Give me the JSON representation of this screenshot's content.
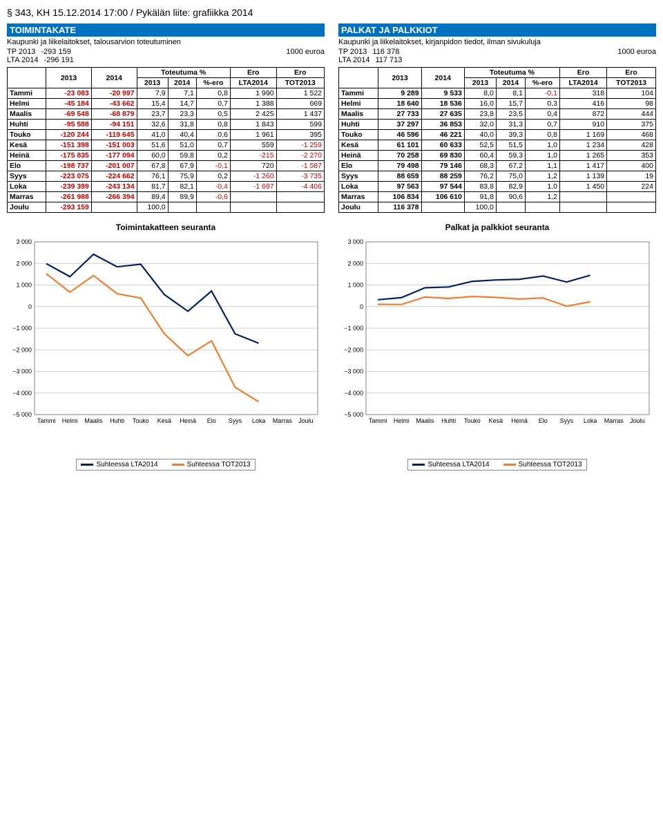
{
  "page_header": "§ 343, KH 15.12.2014 17:00 / Pykälän liite: grafiikka 2014",
  "months": [
    "Tammi",
    "Helmi",
    "Maalis",
    "Huhti",
    "Touko",
    "Kesä",
    "Heinä",
    "Elo",
    "Syys",
    "Loka",
    "Marras",
    "Joulu"
  ],
  "left": {
    "title": "TOIMINTAKATE",
    "subtitle": "Kaupunki ja liikelaitokset, talousarvion toteutuminen",
    "unit": "1000 euroa",
    "tp_label": "TP 2013",
    "tp_value": "-293 159",
    "lta_label": "LTA 2014",
    "lta_value": "-296 191",
    "headers": {
      "c2013": "2013",
      "c2014": "2014",
      "tot": "Toteutuma %",
      "t2013": "2013",
      "t2014": "2014",
      "pero": "%-ero",
      "ero": "Ero",
      "lta": "LTA2014",
      "tot2013": "TOT2013"
    },
    "rows": [
      {
        "m": "Tammi",
        "c13": "-23 083",
        "c14": "-20 997",
        "t13": "7,9",
        "t14": "7,1",
        "pe": "0,8",
        "lta": "1 990",
        "tot": "1 522"
      },
      {
        "m": "Helmi",
        "c13": "-45 184",
        "c14": "-43 662",
        "t13": "15,4",
        "t14": "14,7",
        "pe": "0,7",
        "lta": "1 388",
        "tot": "669"
      },
      {
        "m": "Maalis",
        "c13": "-69 548",
        "c14": "-68 879",
        "t13": "23,7",
        "t14": "23,3",
        "pe": "0,5",
        "lta": "2 425",
        "tot": "1 437"
      },
      {
        "m": "Huhti",
        "c13": "-95 588",
        "c14": "-94 151",
        "t13": "32,6",
        "t14": "31,8",
        "pe": "0,8",
        "lta": "1 843",
        "tot": "599"
      },
      {
        "m": "Touko",
        "c13": "-120 244",
        "c14": "-119 645",
        "t13": "41,0",
        "t14": "40,4",
        "pe": "0,6",
        "lta": "1 961",
        "tot": "395"
      },
      {
        "m": "Kesä",
        "c13": "-151 398",
        "c14": "-151 003",
        "t13": "51,6",
        "t14": "51,0",
        "pe": "0,7",
        "lta": "559",
        "tot": "-1 259"
      },
      {
        "m": "Heinä",
        "c13": "-175 835",
        "c14": "-177 094",
        "t13": "60,0",
        "t14": "59,8",
        "pe": "0,2",
        "lta": "-215",
        "tot": "-2 270"
      },
      {
        "m": "Elo",
        "c13": "-198 737",
        "c14": "-201 007",
        "t13": "67,8",
        "t14": "67,9",
        "pe": "-0,1",
        "lta": "720",
        "tot": "-1 587"
      },
      {
        "m": "Syys",
        "c13": "-223 075",
        "c14": "-224 662",
        "t13": "76,1",
        "t14": "75,9",
        "pe": "0,2",
        "lta": "-1 260",
        "tot": "-3 735"
      },
      {
        "m": "Loka",
        "c13": "-239 399",
        "c14": "-243 134",
        "t13": "81,7",
        "t14": "82,1",
        "pe": "-0,4",
        "lta": "-1 697",
        "tot": "-4 406"
      },
      {
        "m": "Marras",
        "c13": "-261 988",
        "c14": "-266 394",
        "t13": "89,4",
        "t14": "89,9",
        "pe": "-0,6",
        "lta": "",
        "tot": ""
      },
      {
        "m": "Joulu",
        "c13": "-293 159",
        "c14": "",
        "t13": "100,0",
        "t14": "",
        "pe": "",
        "lta": "",
        "tot": ""
      }
    ],
    "chart": {
      "title": "Toimintakatteen seuranta",
      "ymin": -5000,
      "ymax": 3000,
      "ystep": 1000,
      "series": {
        "lta": {
          "name": "Suhteessa LTA2014",
          "color": "#002060",
          "values": [
            1990,
            1388,
            2425,
            1843,
            1961,
            559,
            -215,
            720,
            -1260,
            -1697
          ]
        },
        "tot": {
          "name": "Suhteessa TOT2013",
          "color": "#ed7d31",
          "values": [
            1522,
            669,
            1437,
            599,
            395,
            -1259,
            -2270,
            -1587,
            -3735,
            -4406
          ]
        }
      },
      "grid_color": "#bfbfbf",
      "axis_color": "#808080",
      "line_width": 2.2
    }
  },
  "right": {
    "title": "PALKAT JA PALKKIOT",
    "subtitle": "Kaupunki ja liikelaitokset, kirjanpidon tiedot, ilman sivukuluja",
    "unit": "1000 euroa",
    "tp_label": "TP 2013",
    "tp_value": "116 378",
    "lta_label": "LTA 2014",
    "lta_value": "117 713",
    "headers": {
      "c2013": "2013",
      "c2014": "2014",
      "tot": "Toteutuma %",
      "t2013": "2013",
      "t2014": "2014",
      "pero": "%-ero",
      "ero": "Ero",
      "lta": "LTA2014",
      "tot2013": "TOT2013"
    },
    "rows": [
      {
        "m": "Tammi",
        "c13": "9 289",
        "c14": "9 533",
        "t13": "8,0",
        "t14": "8,1",
        "pe": "-0,1",
        "lta": "318",
        "tot": "104"
      },
      {
        "m": "Helmi",
        "c13": "18 640",
        "c14": "18 536",
        "t13": "16,0",
        "t14": "15,7",
        "pe": "0,3",
        "lta": "416",
        "tot": "98"
      },
      {
        "m": "Maalis",
        "c13": "27 733",
        "c14": "27 635",
        "t13": "23,8",
        "t14": "23,5",
        "pe": "0,4",
        "lta": "872",
        "tot": "444"
      },
      {
        "m": "Huhti",
        "c13": "37 297",
        "c14": "36 853",
        "t13": "32,0",
        "t14": "31,3",
        "pe": "0,7",
        "lta": "910",
        "tot": "375"
      },
      {
        "m": "Touko",
        "c13": "46 596",
        "c14": "46 221",
        "t13": "40,0",
        "t14": "39,3",
        "pe": "0,8",
        "lta": "1 169",
        "tot": "468"
      },
      {
        "m": "Kesä",
        "c13": "61 101",
        "c14": "60 633",
        "t13": "52,5",
        "t14": "51,5",
        "pe": "1,0",
        "lta": "1 234",
        "tot": "428"
      },
      {
        "m": "Heinä",
        "c13": "70 258",
        "c14": "69 830",
        "t13": "60,4",
        "t14": "59,3",
        "pe": "1,0",
        "lta": "1 265",
        "tot": "353"
      },
      {
        "m": "Elo",
        "c13": "79 498",
        "c14": "79 146",
        "t13": "68,3",
        "t14": "67,2",
        "pe": "1,1",
        "lta": "1 417",
        "tot": "400"
      },
      {
        "m": "Syys",
        "c13": "88 659",
        "c14": "88 259",
        "t13": "76,2",
        "t14": "75,0",
        "pe": "1,2",
        "lta": "1 139",
        "tot": "19"
      },
      {
        "m": "Loka",
        "c13": "97 563",
        "c14": "97 544",
        "t13": "83,8",
        "t14": "82,9",
        "pe": "1,0",
        "lta": "1 450",
        "tot": "224"
      },
      {
        "m": "Marras",
        "c13": "106 834",
        "c14": "106 610",
        "t13": "91,8",
        "t14": "90,6",
        "pe": "1,2",
        "lta": "",
        "tot": ""
      },
      {
        "m": "Joulu",
        "c13": "116 378",
        "c14": "",
        "t13": "100,0",
        "t14": "",
        "pe": "",
        "lta": "",
        "tot": ""
      }
    ],
    "chart": {
      "title": "Palkat ja palkkiot seuranta",
      "ymin": -5000,
      "ymax": 3000,
      "ystep": 1000,
      "series": {
        "lta": {
          "name": "Suhteessa LTA2014",
          "color": "#002060",
          "values": [
            318,
            416,
            872,
            910,
            1169,
            1234,
            1265,
            1417,
            1139,
            1450
          ]
        },
        "tot": {
          "name": "Suhteessa TOT2013",
          "color": "#ed7d31",
          "values": [
            104,
            98,
            444,
            375,
            468,
            428,
            353,
            400,
            19,
            224
          ]
        }
      },
      "grid_color": "#bfbfbf",
      "axis_color": "#808080",
      "line_width": 2.2
    }
  }
}
